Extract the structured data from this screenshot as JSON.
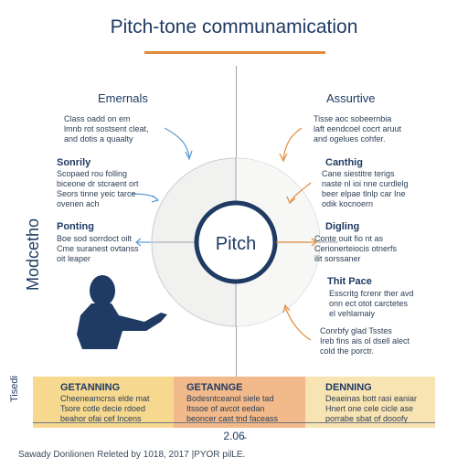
{
  "title": "Pitch-tone communamication",
  "left": {
    "header": "Emernals",
    "blocks": [
      {
        "title": "",
        "text": "Class oadd on em\nlmnb rot sostsent cleat,\nand dotis a quaalty"
      },
      {
        "title": "Sonrily",
        "text": "Scopaed rou folling\nbiceone dr stcraent ort\nSeors tinne yeic tarce\novenen ach"
      },
      {
        "title": "Ponting",
        "text": "Boe sod sorrdoct oilt\nCme suranest ovtanss\noit leaper"
      }
    ]
  },
  "right": {
    "header": "Assurtive",
    "blocks": [
      {
        "title": "",
        "text": "Tisse aoc sobeernbia\nlaft eendcoel cocrt aruut\nand ogelues cohfer."
      },
      {
        "title": "Canthig",
        "text": "Cane siestitre terigs\nnaste nl ioi nne curdlelg\nbeer elpae tlnlp car Ine\nodik kocnoern"
      },
      {
        "title": "Digling",
        "text": "Conte ouit fio nt as\nCerionerteiocis otnerfs\nilit sorssaner"
      },
      {
        "title": "Thit Pace",
        "text": "Esscritg fcrenr ther avd\nonn ect otot carctetes\nel vehlamaiy"
      },
      {
        "title": "",
        "text": "Conrbfy glad Tsstes\nIreb fins ais ol dsell alect\ncold the porctr."
      }
    ]
  },
  "side_label": "Modcetho",
  "center_label": "Pitch",
  "bottom": {
    "side_label": "Tisedi",
    "columns": [
      {
        "title": "GETANNING",
        "text": "Cheeneamcrss elde mat\nTsore cotle decie rdoed\nbeahor ofai cef Incens"
      },
      {
        "title": "GETANNGE",
        "text": "Bodesntceanol siele tad\nItssoe of avcot eedan\nbeoncer cast tnd faceass"
      },
      {
        "title": "DENNING",
        "text": "Deaeinas bott rasi eaniar\nHnert one cele cicle ase\nporrabe sbat of dooofy"
      }
    ],
    "year": "2.06̵"
  },
  "footer": "Sawady Donlionen Releted by 1018, 2017 |PYOR pilLE."
}
